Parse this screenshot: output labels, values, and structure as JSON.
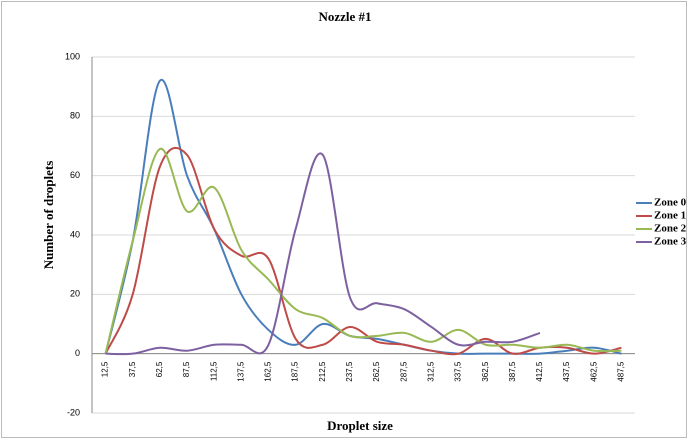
{
  "chart_data": {
    "type": "line",
    "title": "Nozzle #1",
    "x_label": "Droplet size",
    "y_label": "Number of droplets",
    "categories": [
      "12,5",
      "37,5",
      "62,5",
      "87,5",
      "112,5",
      "137,5",
      "162,5",
      "187,5",
      "212,5",
      "237,5",
      "262,5",
      "287,5",
      "312,5",
      "337,5",
      "362,5",
      "387,5",
      "412,5",
      "437,5",
      "462,5",
      "487,5"
    ],
    "series": [
      {
        "name": "Zone 0",
        "color": "#4a7ebb",
        "values": [
          0,
          38,
          92,
          60,
          42,
          20,
          8,
          3,
          10,
          6,
          5,
          3,
          1,
          0,
          0,
          0,
          0,
          1,
          2,
          0
        ]
      },
      {
        "name": "Zone 1",
        "color": "#be4b48",
        "values": [
          0,
          20,
          63,
          67,
          42,
          33,
          32,
          5,
          3,
          9,
          4,
          3,
          1,
          0,
          5,
          0,
          2,
          2,
          0,
          2
        ]
      },
      {
        "name": "Zone 2",
        "color": "#98b954",
        "values": [
          0,
          38,
          69,
          48,
          56,
          35,
          25,
          15,
          12,
          6,
          6,
          7,
          4,
          8,
          3,
          3,
          2,
          3,
          1,
          1
        ]
      },
      {
        "name": "Zone 3",
        "color": "#7d60a0",
        "values": [
          0,
          0,
          2,
          1,
          3,
          3,
          3,
          42,
          67,
          19,
          17,
          15,
          9,
          3,
          4,
          4,
          7,
          null,
          null,
          null
        ]
      }
    ],
    "ylim": [
      -20,
      100
    ],
    "yticks": [
      -20,
      0,
      20,
      40,
      60,
      80,
      100
    ],
    "grid": true,
    "legend": "right"
  }
}
